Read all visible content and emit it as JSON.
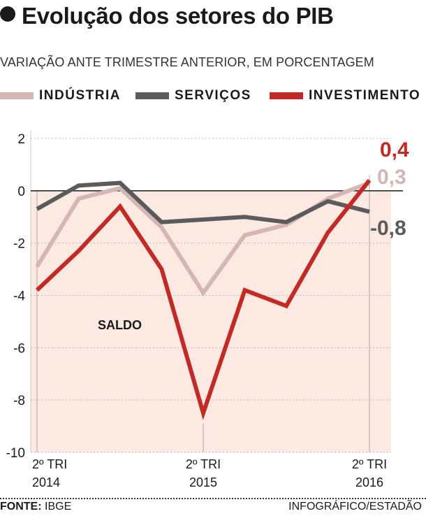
{
  "header": {
    "title": "Evolução dos setores do PIB",
    "subtitle": "VARIAÇÃO ANTE TRIMESTRE ANTERIOR, EM PORCENTAGEM"
  },
  "footer": {
    "source_label": "FONTE:",
    "source_value": "IBGE",
    "credit": "INFOGRÁFICO/ESTADÃO"
  },
  "chart_data": {
    "type": "line",
    "title": "Evolução dos setores do PIB",
    "subtitle": "VARIAÇÃO ANTE TRIMESTRE ANTERIOR, EM PORCENTAGEM",
    "x": [
      "2º TRI 2014",
      "3º TRI 2014",
      "4º TRI 2014",
      "1º TRI 2015",
      "2º TRI 2015",
      "3º TRI 2015",
      "4º TRI 2015",
      "1º TRI 2016",
      "2º TRI 2016"
    ],
    "x_tick_labels": [
      {
        "index": 0,
        "line1": "2º TRI",
        "line2": "2014"
      },
      {
        "index": 4,
        "line1": "2º TRI",
        "line2": "2015"
      },
      {
        "index": 8,
        "line1": "2º TRI",
        "line2": "2016"
      }
    ],
    "y_ticks": [
      2,
      0,
      -2,
      -4,
      -6,
      -8,
      -10
    ],
    "ylim": [
      -10,
      2
    ],
    "grid": "dotted horizontal",
    "legend_position": "top",
    "region_label": "SALDO",
    "series": [
      {
        "name": "INDÚSTRIA",
        "color": "#d4b6b6",
        "values": [
          -2.9,
          -0.3,
          0.1,
          -1.4,
          -3.9,
          -1.7,
          -1.3,
          -0.3,
          0.3
        ],
        "end_label": "0,3"
      },
      {
        "name": "SERVIÇOS",
        "color": "#5b5b5b",
        "values": [
          -0.7,
          0.2,
          0.3,
          -1.2,
          -1.1,
          -1.0,
          -1.2,
          -0.4,
          -0.8
        ],
        "end_label": "-0,8"
      },
      {
        "name": "INVESTIMENTO",
        "color": "#c22a26",
        "values": [
          -3.8,
          -2.3,
          -0.6,
          -3.0,
          -8.5,
          -3.8,
          -4.4,
          -1.6,
          0.4
        ],
        "end_label": "0,4"
      }
    ]
  }
}
